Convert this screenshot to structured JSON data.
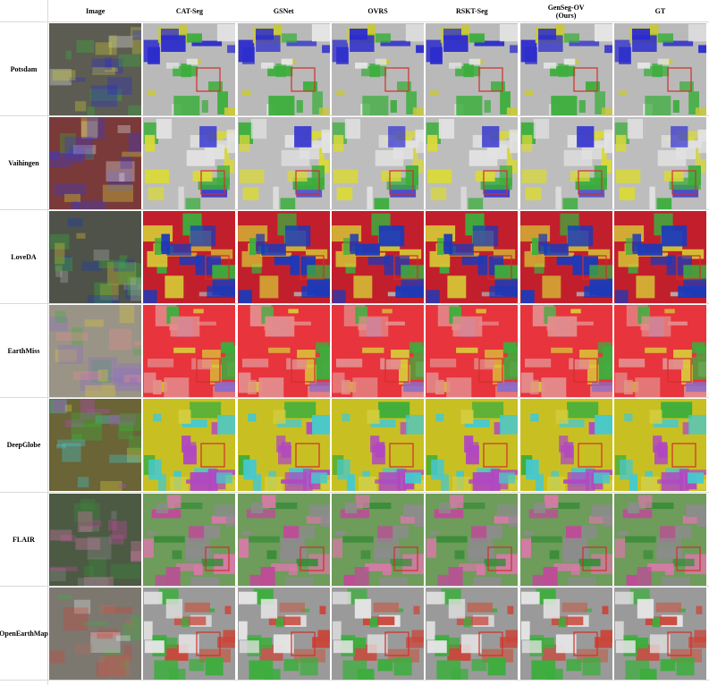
{
  "header": {
    "columns": [
      "Image",
      "CAT-Seg",
      "GSNet",
      "OVRS",
      "RSKT-Seg",
      "GenSeg-OV (Ours)",
      "GT"
    ]
  },
  "rows": [
    "Potsdam",
    "Vaihingen",
    "LoveDA",
    "EarthMiss",
    "DeepGlobe",
    "FLAIR",
    "OpenEarthMap"
  ]
}
